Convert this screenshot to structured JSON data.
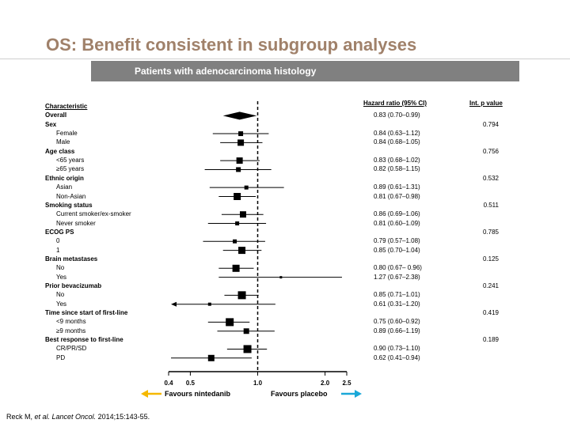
{
  "title": "OS: Benefit consistent in subgroup analyses",
  "subtitle": "Patients with adenocarcinoma histology",
  "headers": {
    "characteristic": "Characteristic",
    "hazard_ratio": "Hazard ratio  (95% CI)",
    "p_value": "Int.  p value"
  },
  "favours_left": "Favours nintedanib",
  "favours_right": "Favours placebo",
  "citation_prefix": "Reck M, ",
  "citation_italic": "et al. Lancet Oncol.",
  "citation_suffix": " 2014;15:143-55.",
  "colors": {
    "title": "#a0816a",
    "banner": "#808080",
    "arrow_left": "#f5b800",
    "arrow_right": "#1aa8d8"
  },
  "chart_data": {
    "type": "forest",
    "x_scale": "log",
    "xlim": [
      0.4,
      2.5
    ],
    "reference_line": 1.0,
    "xticks": [
      "0.4",
      "0.5",
      "1.0",
      "2.0",
      "2.5"
    ],
    "rows": [
      {
        "label": "Characteristic",
        "header": true
      },
      {
        "label": "Overall",
        "bold": true,
        "hr": 0.83,
        "lo": 0.7,
        "hi": 0.99,
        "text": "0.83 (0.70–0.99)",
        "diamond": true
      },
      {
        "label": "Sex",
        "bold": true,
        "p": "0.794"
      },
      {
        "label": "Female",
        "indent": true,
        "hr": 0.84,
        "lo": 0.63,
        "hi": 1.12,
        "text": "0.84 (0.63–1.12)",
        "size": 6
      },
      {
        "label": "Male",
        "indent": true,
        "hr": 0.84,
        "lo": 0.68,
        "hi": 1.05,
        "text": "0.84 (0.68–1.05)",
        "size": 8
      },
      {
        "label": "Age class",
        "bold": true,
        "p": "0.756"
      },
      {
        "label": "<65 years",
        "indent": true,
        "hr": 0.83,
        "lo": 0.68,
        "hi": 1.02,
        "text": "0.83 (0.68–1.02)",
        "size": 8
      },
      {
        "label": "≥65 years",
        "indent": true,
        "hr": 0.82,
        "lo": 0.58,
        "hi": 1.15,
        "text": "0.82 (0.58–1.15)",
        "size": 6
      },
      {
        "label": "Ethnic origin",
        "bold": true,
        "p": "0.532"
      },
      {
        "label": "Asian",
        "indent": true,
        "hr": 0.89,
        "lo": 0.61,
        "hi": 1.31,
        "text": "0.89 (0.61–1.31)",
        "size": 5
      },
      {
        "label": "Non-Asian",
        "indent": true,
        "hr": 0.81,
        "lo": 0.67,
        "hi": 0.98,
        "text": "0.81 (0.67–0.98)",
        "size": 9
      },
      {
        "label": "Smoking status",
        "bold": true,
        "p": "0.511"
      },
      {
        "label": "Current smoker/ex-smoker",
        "indent": true,
        "hr": 0.86,
        "lo": 0.69,
        "hi": 1.06,
        "text": "0.86 (0.69–1.06)",
        "size": 8
      },
      {
        "label": "Never smoker",
        "indent": true,
        "hr": 0.81,
        "lo": 0.6,
        "hi": 1.09,
        "text": "0.81 (0.60–1.09)",
        "size": 5
      },
      {
        "label": "ECOG PS",
        "bold": true,
        "p": "0.785"
      },
      {
        "label": "0",
        "indent": true,
        "hr": 0.79,
        "lo": 0.57,
        "hi": 1.08,
        "text": "0.79 (0.57–1.08)",
        "size": 5
      },
      {
        "label": "1",
        "indent": true,
        "hr": 0.85,
        "lo": 0.7,
        "hi": 1.04,
        "text": "0.85 (0.70–1.04)",
        "size": 9
      },
      {
        "label": "Brain metastases",
        "bold": true,
        "p": "0.125"
      },
      {
        "label": "No",
        "indent": true,
        "hr": 0.8,
        "lo": 0.67,
        "hi": 0.96,
        "text": "0.80 (0.67– 0.96)",
        "size": 9
      },
      {
        "label": "Yes",
        "indent": true,
        "hr": 1.27,
        "lo": 0.67,
        "hi": 2.38,
        "text": "1.27 (0.67–2.38)",
        "size": 3
      },
      {
        "label": "Prior bevacizumab",
        "bold": true,
        "p": "0.241"
      },
      {
        "label": "No",
        "indent": true,
        "hr": 0.85,
        "lo": 0.71,
        "hi": 1.01,
        "text": "0.85 (0.71–1.01)",
        "size": 10
      },
      {
        "label": "Yes",
        "indent": true,
        "hr": 0.61,
        "lo": 0.31,
        "hi": 1.2,
        "text": "0.61 (0.31–1.20)",
        "size": 4,
        "arrow_left": true
      },
      {
        "label": "Time since start of first-line",
        "bold": true,
        "p": "0.419"
      },
      {
        "label": "<9 months",
        "indent": true,
        "hr": 0.75,
        "lo": 0.6,
        "hi": 0.92,
        "text": "0.75 (0.60–0.92)",
        "size": 10
      },
      {
        "label": "≥9 months",
        "indent": true,
        "hr": 0.89,
        "lo": 0.66,
        "hi": 1.19,
        "text": "0.89 (0.66–1.19)",
        "size": 7
      },
      {
        "label": "Best response to first-line",
        "bold": true,
        "p": "0.189"
      },
      {
        "label": "CR/PR/SD",
        "indent": true,
        "hr": 0.9,
        "lo": 0.73,
        "hi": 1.1,
        "text": "0.90 (0.73–1.10)",
        "size": 10
      },
      {
        "label": "PD",
        "indent": true,
        "hr": 0.62,
        "lo": 0.41,
        "hi": 0.94,
        "text": "0.62 (0.41–0.94)",
        "size": 8
      }
    ]
  }
}
